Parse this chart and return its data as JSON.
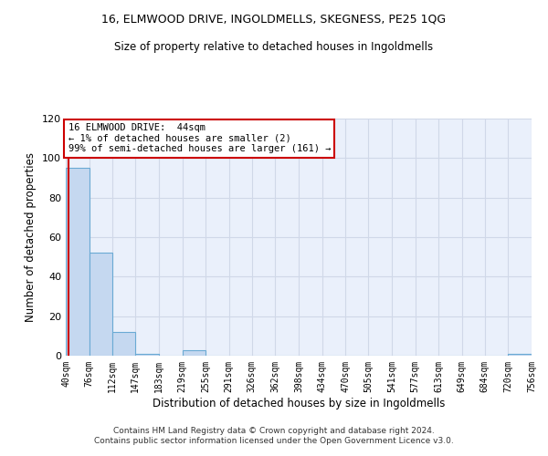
{
  "title1": "16, ELMWOOD DRIVE, INGOLDMELLS, SKEGNESS, PE25 1QG",
  "title2": "Size of property relative to detached houses in Ingoldmells",
  "xlabel": "Distribution of detached houses by size in Ingoldmells",
  "ylabel": "Number of detached properties",
  "bin_edges": [
    40,
    76,
    112,
    147,
    183,
    219,
    255,
    291,
    326,
    362,
    398,
    434,
    470,
    505,
    541,
    577,
    613,
    649,
    684,
    720,
    756
  ],
  "bar_heights": [
    95,
    52,
    12,
    1,
    0,
    3,
    0,
    0,
    0,
    0,
    0,
    0,
    0,
    0,
    0,
    0,
    0,
    0,
    0,
    1
  ],
  "bar_color": "#c5d8f0",
  "bar_edgecolor": "#6aaad4",
  "property_size": 44,
  "vline_color": "#cc0000",
  "ylim": [
    0,
    120
  ],
  "yticks": [
    0,
    20,
    40,
    60,
    80,
    100,
    120
  ],
  "annotation_text": "16 ELMWOOD DRIVE:  44sqm\n← 1% of detached houses are smaller (2)\n99% of semi-detached houses are larger (161) →",
  "annotation_box_edgecolor": "#cc0000",
  "annotation_box_facecolor": "#ffffff",
  "footer_text": "Contains HM Land Registry data © Crown copyright and database right 2024.\nContains public sector information licensed under the Open Government Licence v3.0.",
  "bg_color": "#eaf0fb",
  "grid_color": "#d0d8e8",
  "tick_labels": [
    "40sqm",
    "76sqm",
    "112sqm",
    "147sqm",
    "183sqm",
    "219sqm",
    "255sqm",
    "291sqm",
    "326sqm",
    "362sqm",
    "398sqm",
    "434sqm",
    "470sqm",
    "505sqm",
    "541sqm",
    "577sqm",
    "613sqm",
    "649sqm",
    "684sqm",
    "720sqm",
    "756sqm"
  ]
}
